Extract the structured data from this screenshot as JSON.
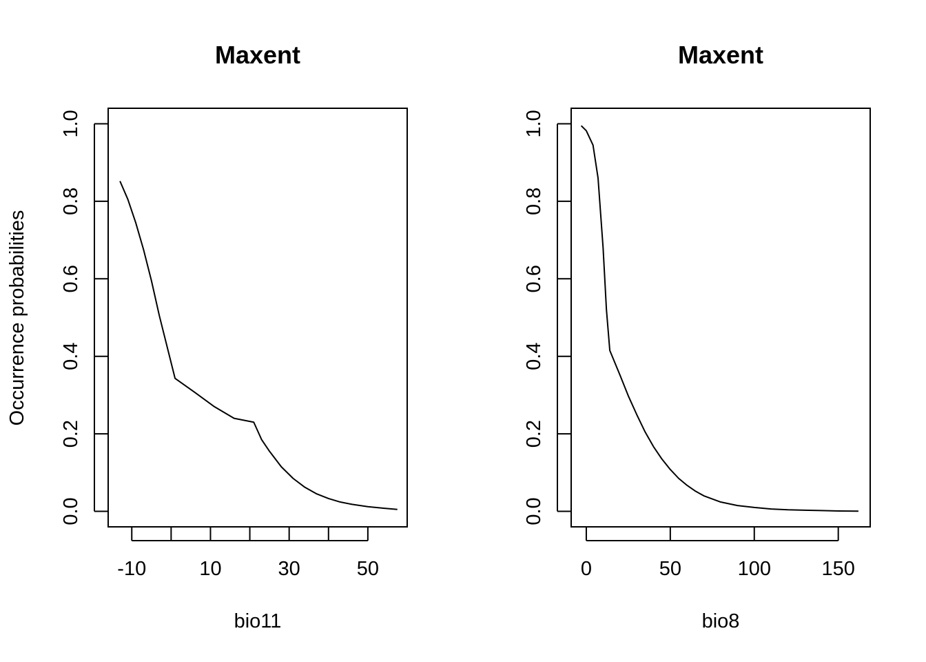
{
  "chart_data": [
    {
      "type": "line",
      "title": "Maxent",
      "xlabel": "bio11",
      "ylabel": "Occurrence probabilities",
      "xlim": [
        -16,
        60
      ],
      "ylim": [
        -0.04,
        1.04
      ],
      "xticks": [
        -10,
        0,
        10,
        20,
        30,
        40,
        50
      ],
      "xtick_labels": [
        "-10",
        "",
        "10",
        "",
        "30",
        "",
        "50"
      ],
      "yticks": [
        0.0,
        0.2,
        0.4,
        0.6,
        0.8,
        1.0
      ],
      "ytick_labels": [
        "0.0",
        "0.2",
        "0.4",
        "0.6",
        "0.8",
        "1.0"
      ],
      "grid": false,
      "series": [
        {
          "x": [
            -13,
            -11,
            -9,
            -7,
            -5,
            -3,
            1,
            6,
            11,
            16,
            21,
            23,
            25,
            28,
            31,
            34,
            37,
            40,
            43,
            46,
            50,
            54,
            57.5
          ],
          "y": [
            0.852,
            0.805,
            0.745,
            0.675,
            0.595,
            0.505,
            0.343,
            0.307,
            0.27,
            0.24,
            0.23,
            0.185,
            0.155,
            0.115,
            0.085,
            0.062,
            0.045,
            0.033,
            0.024,
            0.018,
            0.012,
            0.008,
            0.005
          ]
        }
      ]
    },
    {
      "type": "line",
      "title": "Maxent",
      "xlabel": "bio8",
      "ylabel": "",
      "xlim": [
        -9,
        169
      ],
      "ylim": [
        -0.04,
        1.04
      ],
      "xticks": [
        0,
        50,
        100,
        150
      ],
      "xtick_labels": [
        "0",
        "50",
        "100",
        "150"
      ],
      "yticks": [
        0.0,
        0.2,
        0.4,
        0.6,
        0.8,
        1.0
      ],
      "ytick_labels": [
        "0.0",
        "0.2",
        "0.4",
        "0.6",
        "0.8",
        "1.0"
      ],
      "grid": false,
      "series": [
        {
          "x": [
            -3,
            0,
            4,
            7,
            10,
            12,
            14,
            20,
            25,
            30,
            35,
            40,
            45,
            50,
            55,
            60,
            65,
            70,
            80,
            90,
            100,
            110,
            120,
            130,
            140,
            150,
            162
          ],
          "y": [
            0.995,
            0.982,
            0.945,
            0.86,
            0.68,
            0.52,
            0.415,
            0.352,
            0.298,
            0.25,
            0.205,
            0.167,
            0.135,
            0.108,
            0.085,
            0.067,
            0.052,
            0.04,
            0.024,
            0.015,
            0.01,
            0.006,
            0.004,
            0.003,
            0.002,
            0.001,
            0.0005
          ]
        }
      ]
    }
  ]
}
